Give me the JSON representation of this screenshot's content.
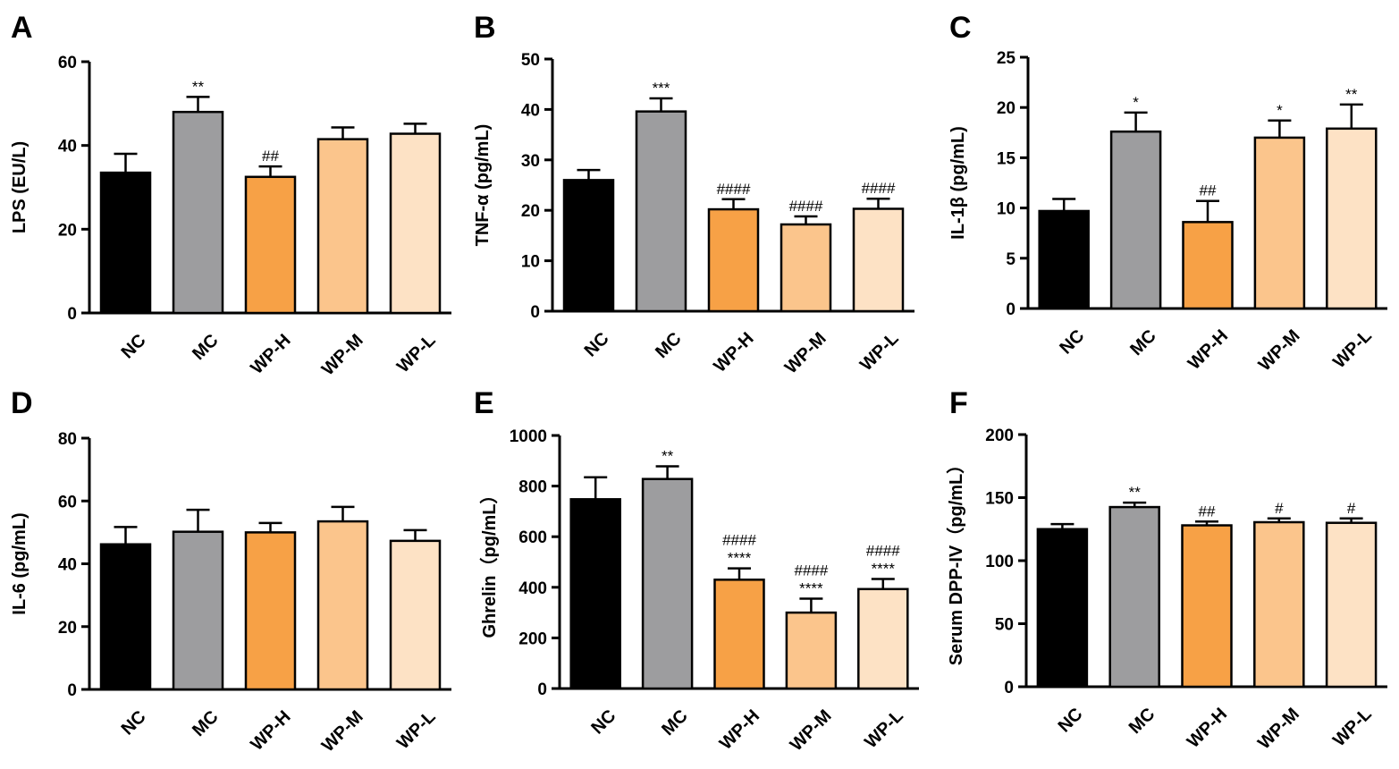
{
  "colors": [
    "#000000",
    "#9d9d9f",
    "#f7a146",
    "#fbc58c",
    "#fde2c5"
  ],
  "chart_data": [
    {
      "type": "bar",
      "panel": "A",
      "ylabel": "LPS (EU/L)",
      "categories": [
        "NC",
        "MC",
        "WP-H",
        "WP-M",
        "WP-L"
      ],
      "values": [
        33.5,
        48,
        32.5,
        41.5,
        42.8
      ],
      "errors": [
        4.5,
        3.6,
        2.5,
        2.8,
        2.4
      ],
      "annotations": [
        [],
        [
          "**"
        ],
        [
          "##"
        ],
        [],
        []
      ],
      "ylim": [
        0,
        60
      ],
      "yticks": [
        "0",
        "20",
        "40",
        "60"
      ]
    },
    {
      "type": "bar",
      "panel": "B",
      "ylabel": "TNF-α (pg/mL)",
      "categories": [
        "NC",
        "MC",
        "WP-H",
        "WP-M",
        "WP-L"
      ],
      "values": [
        26,
        39.6,
        20.2,
        17.2,
        20.3
      ],
      "errors": [
        2,
        2.6,
        2,
        1.6,
        2
      ],
      "annotations": [
        [],
        [
          "***"
        ],
        [
          "####"
        ],
        [
          "####"
        ],
        [
          "####"
        ]
      ],
      "ylim": [
        0,
        50
      ],
      "yticks": [
        "0",
        "10",
        "20",
        "30",
        "40",
        "50"
      ]
    },
    {
      "type": "bar",
      "panel": "C",
      "ylabel": "IL-1β (pg/mL)",
      "categories": [
        "NC",
        "MC",
        "WP-H",
        "WP-M",
        "WP-L"
      ],
      "values": [
        9.7,
        17.6,
        8.6,
        17,
        17.9
      ],
      "errors": [
        1.2,
        1.9,
        2.1,
        1.7,
        2.4
      ],
      "annotations": [
        [],
        [
          "*"
        ],
        [
          "##"
        ],
        [
          "*"
        ],
        [
          "**"
        ]
      ],
      "ylim": [
        0,
        25
      ],
      "yticks": [
        "0",
        "5",
        "10",
        "15",
        "20",
        "25"
      ]
    },
    {
      "type": "bar",
      "panel": "D",
      "ylabel": "IL-6 (pg/mL)",
      "categories": [
        "NC",
        "MC",
        "WP-H",
        "WP-M",
        "WP-L"
      ],
      "values": [
        46.2,
        50.2,
        50,
        53.5,
        47.3
      ],
      "errors": [
        5.5,
        7,
        3,
        4.6,
        3.4
      ],
      "annotations": [
        [],
        [],
        [],
        [],
        []
      ],
      "ylim": [
        0,
        80
      ],
      "yticks": [
        "0",
        "20",
        "40",
        "60",
        "80"
      ]
    },
    {
      "type": "bar",
      "panel": "E",
      "ylabel": "Ghrelin（pg/mL）",
      "categories": [
        "NC",
        "MC",
        "WP-H",
        "WP-M",
        "WP-L"
      ],
      "values": [
        748,
        828,
        430,
        300,
        393
      ],
      "errors": [
        87,
        50,
        45,
        55,
        40
      ],
      "annotations": [
        [],
        [
          "**"
        ],
        [
          "####",
          "****"
        ],
        [
          "####",
          "****"
        ],
        [
          "####",
          "****"
        ]
      ],
      "ylim": [
        0,
        1000
      ],
      "yticks": [
        "0",
        "200",
        "400",
        "600",
        "800",
        "1000"
      ]
    },
    {
      "type": "bar",
      "panel": "F",
      "ylabel": "Serum DPP-IV（pg/mL）",
      "categories": [
        "NC",
        "MC",
        "WP-H",
        "WP-M",
        "WP-L"
      ],
      "values": [
        125,
        142.5,
        128,
        130.5,
        130
      ],
      "errors": [
        4,
        3.5,
        3,
        3,
        3.5
      ],
      "annotations": [
        [],
        [
          "**"
        ],
        [
          "##"
        ],
        [
          "#"
        ],
        [
          "#"
        ]
      ],
      "ylim": [
        0,
        200
      ],
      "yticks": [
        "0",
        "50",
        "100",
        "150",
        "200"
      ]
    }
  ]
}
